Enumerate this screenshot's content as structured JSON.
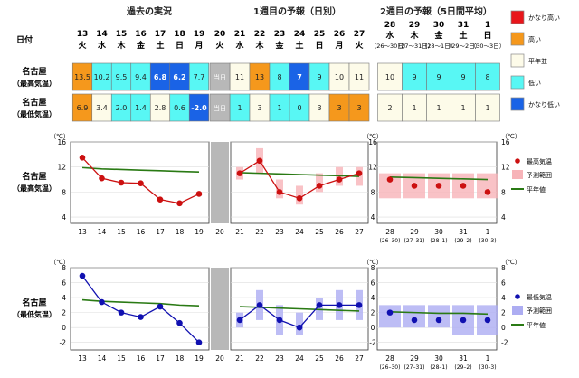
{
  "section_titles": {
    "past": "過去の実況",
    "week1": "1週目の予報（日別）",
    "week2": "2週目の予報（5日間平均）"
  },
  "row_header": "日付",
  "days_past": [
    {
      "d": "13",
      "w": "火"
    },
    {
      "d": "14",
      "w": "水"
    },
    {
      "d": "15",
      "w": "木"
    },
    {
      "d": "16",
      "w": "金"
    },
    {
      "d": "17",
      "w": "土"
    },
    {
      "d": "18",
      "w": "日"
    },
    {
      "d": "19",
      "w": "月"
    }
  ],
  "today": {
    "d": "20",
    "w": "火",
    "cell_label": "当日"
  },
  "days_week1": [
    {
      "d": "21",
      "w": "水"
    },
    {
      "d": "22",
      "w": "木"
    },
    {
      "d": "23",
      "w": "金"
    },
    {
      "d": "24",
      "w": "土"
    },
    {
      "d": "25",
      "w": "日"
    },
    {
      "d": "26",
      "w": "月"
    },
    {
      "d": "27",
      "w": "火"
    }
  ],
  "days_week2": [
    {
      "d": "28",
      "w": "水",
      "r": "（26〜30日）"
    },
    {
      "d": "29",
      "w": "木",
      "r": "（27〜31日）"
    },
    {
      "d": "30",
      "w": "金",
      "r": "（28〜1日）"
    },
    {
      "d": "31",
      "w": "土",
      "r": "（29〜2日）"
    },
    {
      "d": "1",
      "w": "日",
      "r": "（30〜3日）"
    }
  ],
  "row_labels": {
    "max": [
      "名古屋",
      "（最高気温）"
    ],
    "min": [
      "名古屋",
      "（最低気温）"
    ]
  },
  "table": {
    "max_past": [
      "13.5",
      "10.2",
      "9.5",
      "9.4",
      "6.8",
      "6.2",
      "7.7"
    ],
    "max_past_level": [
      "high",
      "low",
      "low",
      "low",
      "vlow",
      "vlow",
      "low"
    ],
    "max_week1": [
      "11",
      "13",
      "8",
      "7",
      "9",
      "10",
      "11"
    ],
    "max_week1_level": [
      "normal",
      "high",
      "low",
      "vlow",
      "low",
      "normal",
      "normal"
    ],
    "max_week2": [
      "10",
      "9",
      "9",
      "9",
      "8"
    ],
    "max_week2_level": [
      "normal",
      "low",
      "low",
      "low",
      "low"
    ],
    "min_past": [
      "6.9",
      "3.4",
      "2.0",
      "1.4",
      "2.8",
      "0.6",
      "-2.0"
    ],
    "min_past_level": [
      "high",
      "normal",
      "low",
      "low",
      "normal",
      "low",
      "vlow"
    ],
    "min_week1": [
      "1",
      "3",
      "1",
      "0",
      "3",
      "3",
      "3"
    ],
    "min_week1_level": [
      "low",
      "normal",
      "low",
      "low",
      "normal",
      "high",
      "high"
    ],
    "min_week2": [
      "2",
      "1",
      "1",
      "1",
      "1"
    ],
    "min_week2_level": [
      "normal",
      "normal",
      "normal",
      "normal",
      "normal"
    ]
  },
  "legend_table": [
    {
      "key": "vhigh",
      "label": "かなり高い"
    },
    {
      "key": "high",
      "label": "高い"
    },
    {
      "key": "normal",
      "label": "平年並"
    },
    {
      "key": "low",
      "label": "低い"
    },
    {
      "key": "vlow",
      "label": "かなり低い"
    }
  ],
  "colors": {
    "vhigh": "#e8161b",
    "high": "#f5981c",
    "normal": "#fdfbe9",
    "low": "#58f7f4",
    "vlow": "#1a63e6",
    "today": "#b8b8b8",
    "max_line": "#cc1010",
    "min_line": "#1010b0",
    "normal_line": "#2a7a14",
    "max_band": "#f7b3b8",
    "min_band": "#adadf2"
  },
  "chart_data": [
    {
      "type": "line",
      "panel": "max",
      "unit_label": "（℃）",
      "ylim": [
        3,
        16
      ],
      "yticks": [
        "4",
        "8",
        "12",
        "16"
      ],
      "row_label": [
        "名古屋",
        "（最高気温）"
      ],
      "x_past": [
        "13",
        "14",
        "15",
        "16",
        "17",
        "18",
        "19"
      ],
      "x_today": "20",
      "x_week1": [
        "21",
        "22",
        "23",
        "24",
        "25",
        "26",
        "27"
      ],
      "x_week2": [
        "28",
        "29",
        "30",
        "31",
        "1"
      ],
      "x_week2_sub": [
        "(26–30)",
        "(27–31)",
        "(28–1)",
        "(29–2)",
        "(30–3)"
      ],
      "series": [
        {
          "name": "最高気温",
          "past": [
            13.5,
            10.2,
            9.5,
            9.4,
            6.8,
            6.2,
            7.7
          ],
          "week1": [
            11,
            13,
            8,
            7,
            9,
            10,
            11
          ],
          "week2": [
            10,
            9,
            9,
            9,
            8
          ]
        },
        {
          "name": "平年値",
          "past": [
            11.9,
            11.7,
            11.6,
            11.5,
            11.4,
            11.3,
            11.2
          ],
          "week1": [
            11.1,
            11.0,
            10.9,
            10.8,
            10.7,
            10.6,
            10.5
          ],
          "week2": [
            10.4,
            10.3,
            10.2,
            10.1,
            10.0
          ]
        }
      ],
      "range_week1": [
        [
          10,
          12
        ],
        [
          11,
          15
        ],
        [
          7,
          10
        ],
        [
          6,
          9
        ],
        [
          8,
          11
        ],
        [
          9,
          12
        ],
        [
          9,
          12
        ]
      ],
      "range_week2": [
        [
          7,
          11
        ],
        [
          7,
          11
        ],
        [
          7,
          11
        ],
        [
          7,
          11
        ],
        [
          7,
          11
        ]
      ],
      "legend": [
        "最高気温",
        "予測範囲",
        "平年値"
      ]
    },
    {
      "type": "line",
      "panel": "min",
      "unit_label": "（℃）",
      "ylim": [
        -3,
        8
      ],
      "yticks": [
        "-2",
        "0",
        "2",
        "4",
        "6",
        "8"
      ],
      "row_label": [
        "名古屋",
        "（最低気温）"
      ],
      "x_past": [
        "13",
        "14",
        "15",
        "16",
        "17",
        "18",
        "19"
      ],
      "x_today": "20",
      "x_week1": [
        "21",
        "22",
        "23",
        "24",
        "25",
        "26",
        "27"
      ],
      "x_week2": [
        "28",
        "29",
        "30",
        "31",
        "1"
      ],
      "x_week2_sub": [
        "(26–30)",
        "(27–31)",
        "(28–1)",
        "(29–2)",
        "(30–3)"
      ],
      "series": [
        {
          "name": "最低気温",
          "past": [
            6.9,
            3.4,
            2.0,
            1.4,
            2.8,
            0.6,
            -2.0
          ],
          "week1": [
            1,
            3,
            1,
            0,
            3,
            3,
            3
          ],
          "week2": [
            2,
            1,
            1,
            1,
            1
          ]
        },
        {
          "name": "平年値",
          "past": [
            3.7,
            3.5,
            3.4,
            3.3,
            3.2,
            3.0,
            2.9
          ],
          "week1": [
            2.8,
            2.7,
            2.6,
            2.5,
            2.4,
            2.3,
            2.2
          ],
          "week2": [
            2.1,
            2.0,
            1.9,
            1.9,
            1.8
          ]
        }
      ],
      "range_week1": [
        [
          0,
          2
        ],
        [
          1,
          5
        ],
        [
          -1,
          3
        ],
        [
          -1,
          2
        ],
        [
          1,
          4
        ],
        [
          1,
          5
        ],
        [
          1,
          5
        ]
      ],
      "range_week2": [
        [
          0,
          3
        ],
        [
          0,
          3
        ],
        [
          0,
          3
        ],
        [
          -1,
          3
        ],
        [
          -1,
          3
        ]
      ],
      "legend": [
        "最低気温",
        "予測範囲",
        "平年値"
      ]
    }
  ]
}
